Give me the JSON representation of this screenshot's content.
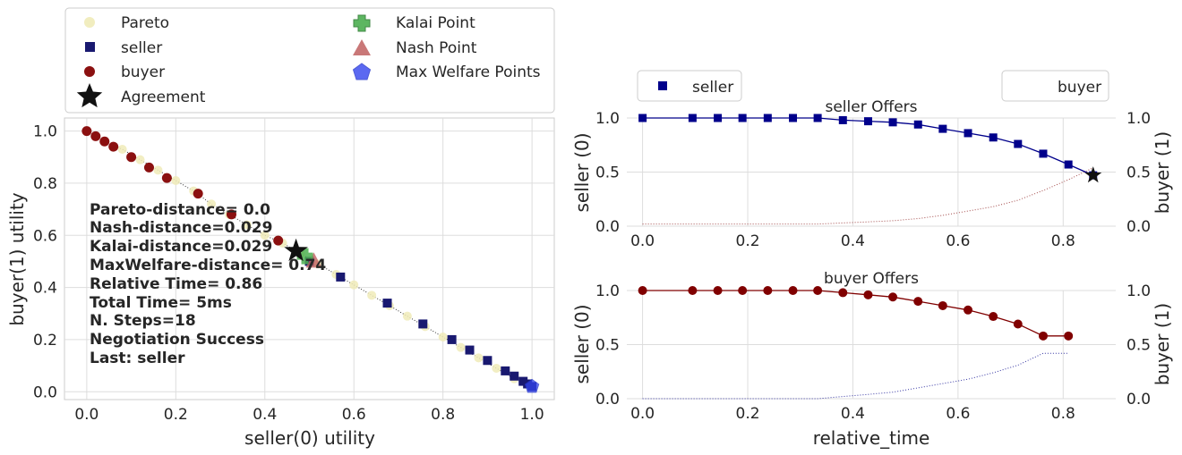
{
  "chart_data": [
    {
      "type": "scatter",
      "title": "",
      "xlabel": "seller(0) utility",
      "ylabel": "buyer(1) utility",
      "xlim": [
        -0.05,
        1.05
      ],
      "ylim": [
        -0.03,
        1.05
      ],
      "xticks": [
        "0.0",
        "0.2",
        "0.4",
        "0.6",
        "0.8",
        "1.0"
      ],
      "yticks": [
        "0.0",
        "0.2",
        "0.4",
        "0.6",
        "0.8",
        "1.0"
      ],
      "grid": true,
      "legend": {
        "placement": "top",
        "entries": [
          {
            "label": "Pareto",
            "marker": "circle",
            "color": "#f0ebb8"
          },
          {
            "label": "Kalai Point",
            "marker": "plus",
            "color": "#4caf50"
          },
          {
            "label": "seller",
            "marker": "square",
            "color": "#191970"
          },
          {
            "label": "Nash Point",
            "marker": "triangle",
            "color": "#c06060"
          },
          {
            "label": "buyer",
            "marker": "circle",
            "color": "#8b1010"
          },
          {
            "label": "Max Welfare Points",
            "marker": "pentagon",
            "color": "#3344ee"
          },
          {
            "label": "Agreement",
            "marker": "star",
            "color": "#111111"
          }
        ]
      },
      "pareto": [
        [
          0.0,
          1.0
        ],
        [
          0.04,
          0.96
        ],
        [
          0.08,
          0.93
        ],
        [
          0.12,
          0.89
        ],
        [
          0.16,
          0.85
        ],
        [
          0.2,
          0.81
        ],
        [
          0.24,
          0.77
        ],
        [
          0.28,
          0.72
        ],
        [
          0.32,
          0.68
        ],
        [
          0.36,
          0.64
        ],
        [
          0.4,
          0.6
        ],
        [
          0.44,
          0.57
        ],
        [
          0.48,
          0.53
        ],
        [
          0.52,
          0.49
        ],
        [
          0.56,
          0.45
        ],
        [
          0.6,
          0.41
        ],
        [
          0.64,
          0.37
        ],
        [
          0.68,
          0.33
        ],
        [
          0.72,
          0.29
        ],
        [
          0.76,
          0.25
        ],
        [
          0.8,
          0.21
        ],
        [
          0.84,
          0.17
        ],
        [
          0.88,
          0.13
        ],
        [
          0.92,
          0.09
        ],
        [
          0.96,
          0.05
        ],
        [
          1.0,
          0.02
        ]
      ],
      "series": [
        {
          "name": "seller",
          "points": [
            [
              1.0,
              0.02
            ],
            [
              0.99,
              0.03
            ],
            [
              0.98,
              0.04
            ],
            [
              0.96,
              0.06
            ],
            [
              0.94,
              0.08
            ],
            [
              0.9,
              0.12
            ],
            [
              0.86,
              0.16
            ],
            [
              0.82,
              0.2
            ],
            [
              0.755,
              0.26
            ],
            [
              0.675,
              0.34
            ],
            [
              0.57,
              0.44
            ],
            [
              0.5,
              0.5
            ]
          ]
        },
        {
          "name": "buyer",
          "points": [
            [
              0.0,
              1.0
            ],
            [
              0.02,
              0.98
            ],
            [
              0.04,
              0.96
            ],
            [
              0.06,
              0.94
            ],
            [
              0.1,
              0.9
            ],
            [
              0.14,
              0.86
            ],
            [
              0.18,
              0.82
            ],
            [
              0.25,
              0.76
            ],
            [
              0.325,
              0.68
            ],
            [
              0.43,
              0.58
            ]
          ]
        }
      ],
      "agreement": [
        0.47,
        0.54
      ],
      "kalai_point": [
        0.49,
        0.52
      ],
      "nash_point": [
        0.51,
        0.5
      ],
      "max_welfare_points": [
        [
          1.0,
          0.02
        ]
      ],
      "annotations": [
        "Pareto-distance= 0.0",
        "Nash-distance=0.029",
        "Kalai-distance=0.029",
        "MaxWelfare-distance= 0.74",
        "Relative Time= 0.86",
        "Total Time= 5ms",
        "N. Steps=18",
        "Negotiation Success",
        "Last: seller"
      ]
    },
    {
      "type": "line",
      "title": "seller Offers",
      "xlabel": "",
      "ylabel": "seller (0)",
      "ylabel_right": "buyer (1)",
      "xlim": [
        -0.03,
        0.9
      ],
      "ylim": [
        0.0,
        1.0
      ],
      "xticks": [
        "0.0",
        "0.2",
        "0.4",
        "0.6",
        "0.8"
      ],
      "yticks": [
        "0.0",
        "0.5",
        "1.0"
      ],
      "grid": true,
      "legend_left": "seller",
      "legend_right": "buyer",
      "series": [
        {
          "name": "seller",
          "color": "#00008b",
          "marker": "square",
          "x": [
            0.0,
            0.095,
            0.143,
            0.19,
            0.238,
            0.286,
            0.333,
            0.381,
            0.429,
            0.476,
            0.524,
            0.571,
            0.619,
            0.667,
            0.714,
            0.762,
            0.81,
            0.857
          ],
          "y": [
            1.0,
            1.0,
            1.0,
            1.0,
            1.0,
            1.0,
            1.0,
            0.98,
            0.97,
            0.96,
            0.94,
            0.9,
            0.86,
            0.82,
            0.76,
            0.67,
            0.57,
            0.47
          ]
        },
        {
          "name": "buyer",
          "color": "#8b1a1a",
          "style": "dotted",
          "x": [
            0.0,
            0.095,
            0.143,
            0.19,
            0.238,
            0.286,
            0.333,
            0.381,
            0.429,
            0.476,
            0.524,
            0.571,
            0.619,
            0.667,
            0.714,
            0.762,
            0.81,
            0.857
          ],
          "y": [
            0.02,
            0.02,
            0.02,
            0.02,
            0.02,
            0.02,
            0.02,
            0.03,
            0.04,
            0.05,
            0.07,
            0.1,
            0.14,
            0.18,
            0.24,
            0.33,
            0.43,
            0.54
          ]
        }
      ],
      "agreement": [
        0.857,
        0.47
      ]
    },
    {
      "type": "line",
      "title": "buyer Offers",
      "xlabel": "relative_time",
      "ylabel": "seller (0)",
      "ylabel_right": "buyer (1)",
      "xlim": [
        -0.03,
        0.9
      ],
      "ylim": [
        0.0,
        1.0
      ],
      "xticks": [
        "0.0",
        "0.2",
        "0.4",
        "0.6",
        "0.8"
      ],
      "yticks": [
        "0.0",
        "0.5",
        "1.0"
      ],
      "grid": true,
      "series": [
        {
          "name": "buyer",
          "color": "#800000",
          "marker": "circle",
          "x": [
            0.0,
            0.095,
            0.143,
            0.19,
            0.238,
            0.286,
            0.333,
            0.381,
            0.429,
            0.476,
            0.524,
            0.571,
            0.619,
            0.667,
            0.714,
            0.762,
            0.81
          ],
          "y": [
            1.0,
            1.0,
            1.0,
            1.0,
            1.0,
            1.0,
            1.0,
            0.98,
            0.96,
            0.94,
            0.9,
            0.86,
            0.82,
            0.76,
            0.69,
            0.58,
            0.58
          ]
        },
        {
          "name": "seller",
          "color": "#00008b",
          "style": "dotted",
          "x": [
            0.0,
            0.095,
            0.143,
            0.19,
            0.238,
            0.286,
            0.333,
            0.381,
            0.429,
            0.476,
            0.524,
            0.571,
            0.619,
            0.667,
            0.714,
            0.762,
            0.81
          ],
          "y": [
            0.0,
            0.0,
            0.0,
            0.0,
            0.0,
            0.0,
            0.0,
            0.02,
            0.04,
            0.06,
            0.1,
            0.14,
            0.18,
            0.24,
            0.31,
            0.42,
            0.42
          ]
        }
      ]
    }
  ]
}
